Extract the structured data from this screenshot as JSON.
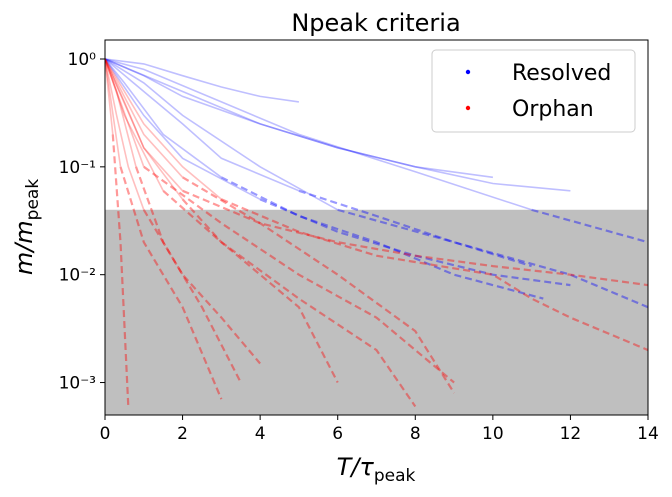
{
  "chart_data": {
    "type": "line",
    "title": "Npeak criteria",
    "xlabel": "T/τ",
    "xlabel_sub": "peak",
    "ylabel": "m/m",
    "ylabel_sub": "peak",
    "xlim": [
      0,
      14
    ],
    "xticks": [
      0,
      2,
      4,
      6,
      8,
      10,
      12,
      14
    ],
    "ylim": [
      0.0005,
      1.5
    ],
    "log_y": true,
    "yticks": [
      {
        "value": 0.001,
        "label": "10⁻³"
      },
      {
        "value": 0.01,
        "label": "10⁻²"
      },
      {
        "value": 0.1,
        "label": "10⁻¹"
      },
      {
        "value": 1,
        "label": "10⁰"
      }
    ],
    "threshold": 0.04,
    "threshold_color": "#bfbfbf",
    "legend": "upper right",
    "series": [
      {
        "name": "Resolved",
        "color": "#0000ff",
        "lines": [
          {
            "x": [
              0,
              1,
              2,
              4,
              6,
              8,
              10,
              12
            ],
            "values": [
              1,
              0.7,
              0.45,
              0.25,
              0.15,
              0.1,
              0.07,
              0.06
            ]
          },
          {
            "x": [
              0,
              1,
              2,
              3,
              5,
              7,
              9,
              11
            ],
            "values": [
              1,
              0.5,
              0.25,
              0.12,
              0.06,
              0.035,
              0.02,
              0.012
            ]
          },
          {
            "x": [
              0,
              0.5,
              1.5,
              3,
              5,
              7,
              9,
              11.3
            ],
            "values": [
              1,
              0.6,
              0.2,
              0.08,
              0.035,
              0.02,
              0.01,
              0.006
            ]
          },
          {
            "x": [
              0,
              1,
              3,
              5,
              8,
              11,
              14
            ],
            "values": [
              1,
              0.8,
              0.4,
              0.2,
              0.09,
              0.04,
              0.02
            ]
          },
          {
            "x": [
              0,
              1,
              2,
              4,
              6,
              9,
              12,
              14
            ],
            "values": [
              1,
              0.6,
              0.3,
              0.1,
              0.04,
              0.02,
              0.01,
              0.005
            ]
          },
          {
            "x": [
              0,
              1,
              2,
              3,
              4,
              5
            ],
            "values": [
              1,
              0.9,
              0.7,
              0.55,
              0.45,
              0.4
            ]
          },
          {
            "x": [
              0,
              1,
              2,
              4,
              6,
              8,
              10,
              12
            ],
            "values": [
              1,
              0.3,
              0.12,
              0.05,
              0.025,
              0.015,
              0.01,
              0.008
            ]
          },
          {
            "x": [
              0,
              2,
              4,
              6,
              8,
              10
            ],
            "values": [
              1,
              0.5,
              0.25,
              0.15,
              0.1,
              0.08
            ]
          }
        ]
      },
      {
        "name": "Orphan",
        "color": "#ff0000",
        "lines": [
          {
            "x": [
              0,
              0.3,
              0.6,
              1,
              2,
              3,
              4
            ],
            "values": [
              1,
              0.3,
              0.1,
              0.04,
              0.01,
              0.004,
              0.0015
            ]
          },
          {
            "x": [
              0,
              0.5,
              1,
              2,
              3,
              5,
              6
            ],
            "values": [
              1,
              0.4,
              0.15,
              0.05,
              0.02,
              0.005,
              0.001
            ]
          },
          {
            "x": [
              0,
              0.2,
              0.4,
              0.6
            ],
            "values": [
              1,
              0.2,
              0.02,
              0.0006
            ]
          },
          {
            "x": [
              0,
              1,
              2,
              4,
              6,
              8,
              9
            ],
            "values": [
              1,
              0.2,
              0.08,
              0.03,
              0.01,
              0.003,
              0.0008
            ]
          },
          {
            "x": [
              0,
              0.5,
              1.5,
              3,
              5,
              7,
              8
            ],
            "values": [
              1,
              0.3,
              0.06,
              0.02,
              0.006,
              0.002,
              0.0006
            ]
          },
          {
            "x": [
              0,
              1,
              2,
              3,
              5,
              7,
              10,
              11,
              12,
              14
            ],
            "values": [
              1,
              0.25,
              0.1,
              0.05,
              0.025,
              0.015,
              0.01,
              0.006,
              0.004,
              0.002
            ]
          },
          {
            "x": [
              0,
              0.4,
              1,
              2,
              3
            ],
            "values": [
              1,
              0.1,
              0.02,
              0.005,
              0.0007
            ]
          },
          {
            "x": [
              0,
              1,
              2,
              4,
              6,
              8,
              10,
              12,
              14
            ],
            "values": [
              1,
              0.15,
              0.06,
              0.03,
              0.02,
              0.015,
              0.012,
              0.01,
              0.008
            ]
          },
          {
            "x": [
              0,
              0.3,
              0.8,
              1.5,
              2.5,
              3.5
            ],
            "values": [
              1,
              0.5,
              0.1,
              0.02,
              0.005,
              0.001
            ]
          },
          {
            "x": [
              0,
              1,
              3,
              5,
              7,
              9
            ],
            "values": [
              1,
              0.1,
              0.03,
              0.01,
              0.004,
              0.001
            ]
          }
        ]
      }
    ]
  }
}
